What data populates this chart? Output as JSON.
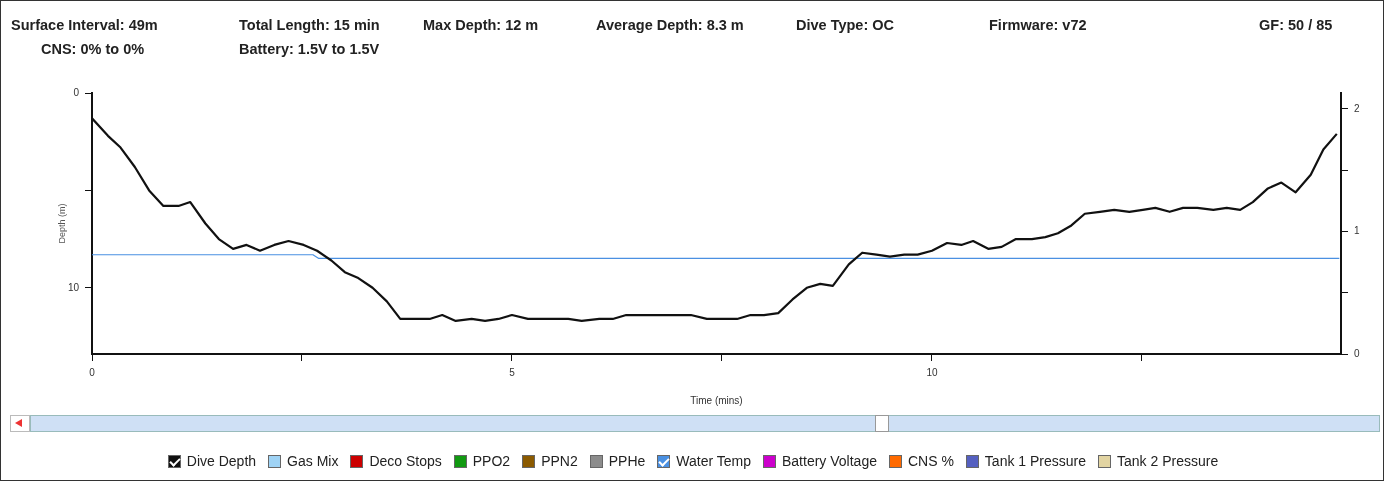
{
  "chart_data": {
    "type": "line",
    "annotations": [
      "Surface Interval: 49m",
      "Total Length: 15 min",
      "Max Depth: 12 m",
      "Average Depth: 8.3 m",
      "Dive Type: OC",
      "Firmware: v72",
      "GF: 50 / 85",
      "CNS: 0% to 0%",
      "Battery: 1.5V to 1.5V"
    ],
    "xlabel": "Time (mins)",
    "ylabel": "Depth (m)",
    "xlim": [
      0,
      14.87
    ],
    "xticks": [
      0,
      {
        "value": 2.5,
        "label": null
      },
      5,
      {
        "value": 7.5,
        "label": null
      },
      10,
      {
        "value": 12.5,
        "label": null
      }
    ],
    "ylim": [
      13.4,
      0
    ],
    "yticks": [
      0,
      {
        "value": 5,
        "label": null
      },
      10
    ],
    "y2lim": [
      0,
      2.13
    ],
    "y2ticks": [
      0,
      {
        "value": 0.5,
        "label": null
      },
      1,
      {
        "value": 1.5,
        "label": null
      },
      2
    ],
    "grid": false,
    "legend": "bottom",
    "marker": "none",
    "line_style": "solid",
    "series": [
      {
        "name": "Dive Depth",
        "color": "#111111",
        "x": [
          0,
          0.19,
          0.34,
          0.51,
          0.68,
          0.85,
          1.03,
          1.17,
          1.35,
          1.51,
          1.68,
          1.84,
          2.0,
          2.17,
          2.34,
          2.52,
          2.68,
          2.85,
          3.01,
          3.17,
          3.34,
          3.51,
          3.67,
          4.02,
          4.17,
          4.33,
          4.52,
          4.68,
          4.84,
          5.0,
          5.19,
          5.35,
          5.51,
          5.67,
          5.83,
          6.04,
          6.2,
          6.36,
          6.68,
          6.89,
          7.13,
          7.32,
          7.68,
          7.84,
          8.0,
          8.17,
          8.34,
          8.51,
          8.67,
          8.82,
          9.01,
          9.17,
          9.34,
          9.5,
          9.67,
          9.83,
          10.0,
          10.18,
          10.35,
          10.49,
          10.67,
          10.83,
          11.0,
          11.19,
          11.35,
          11.5,
          11.66,
          11.82,
          12.0,
          12.17,
          12.35,
          12.51,
          12.66,
          12.83,
          12.99,
          13.16,
          13.35,
          13.51,
          13.67,
          13.82,
          14.0,
          14.16,
          14.33,
          14.51,
          14.66,
          14.82
        ],
        "values": [
          1.3,
          2.2,
          2.8,
          3.8,
          5.0,
          5.8,
          5.8,
          5.6,
          6.7,
          7.5,
          8.0,
          7.8,
          8.1,
          7.8,
          7.6,
          7.8,
          8.1,
          8.6,
          9.2,
          9.5,
          10.0,
          10.7,
          11.6,
          11.6,
          11.4,
          11.7,
          11.6,
          11.7,
          11.6,
          11.4,
          11.6,
          11.6,
          11.6,
          11.6,
          11.7,
          11.6,
          11.6,
          11.4,
          11.4,
          11.4,
          11.4,
          11.6,
          11.6,
          11.4,
          11.4,
          11.3,
          10.6,
          10.0,
          9.8,
          9.9,
          8.8,
          8.2,
          8.3,
          8.4,
          8.3,
          8.3,
          8.1,
          7.7,
          7.8,
          7.6,
          8.0,
          7.9,
          7.5,
          7.5,
          7.4,
          7.2,
          6.8,
          6.2,
          6.1,
          6.0,
          6.1,
          6.0,
          5.9,
          6.1,
          5.9,
          5.9,
          6.0,
          5.9,
          6.0,
          5.6,
          4.9,
          4.6,
          5.1,
          4.2,
          2.9,
          2.1
        ]
      },
      {
        "name": "Gas Mix",
        "color": "#9fd3f5"
      },
      {
        "name": "Deco Stops",
        "color": "#cc0000"
      },
      {
        "name": "PPO2",
        "color": "#119911"
      },
      {
        "name": "PPN2",
        "color": "#8b5a00"
      },
      {
        "name": "PPHe",
        "color": "#8c8c8c"
      },
      {
        "name": "Water Temp",
        "color": "#4a90e2",
        "axis": "y2",
        "x": [
          0,
          2.63,
          2.7,
          14.85
        ],
        "values": [
          0.81,
          0.81,
          0.78,
          0.78
        ]
      },
      {
        "name": "Battery Voltage",
        "color": "#cc00cc"
      },
      {
        "name": "CNS %",
        "color": "#ff6a00"
      },
      {
        "name": "Tank 1 Pressure",
        "color": "#5560c0"
      },
      {
        "name": "Tank 2 Pressure",
        "color": "#e2d4a2"
      }
    ]
  }
}
